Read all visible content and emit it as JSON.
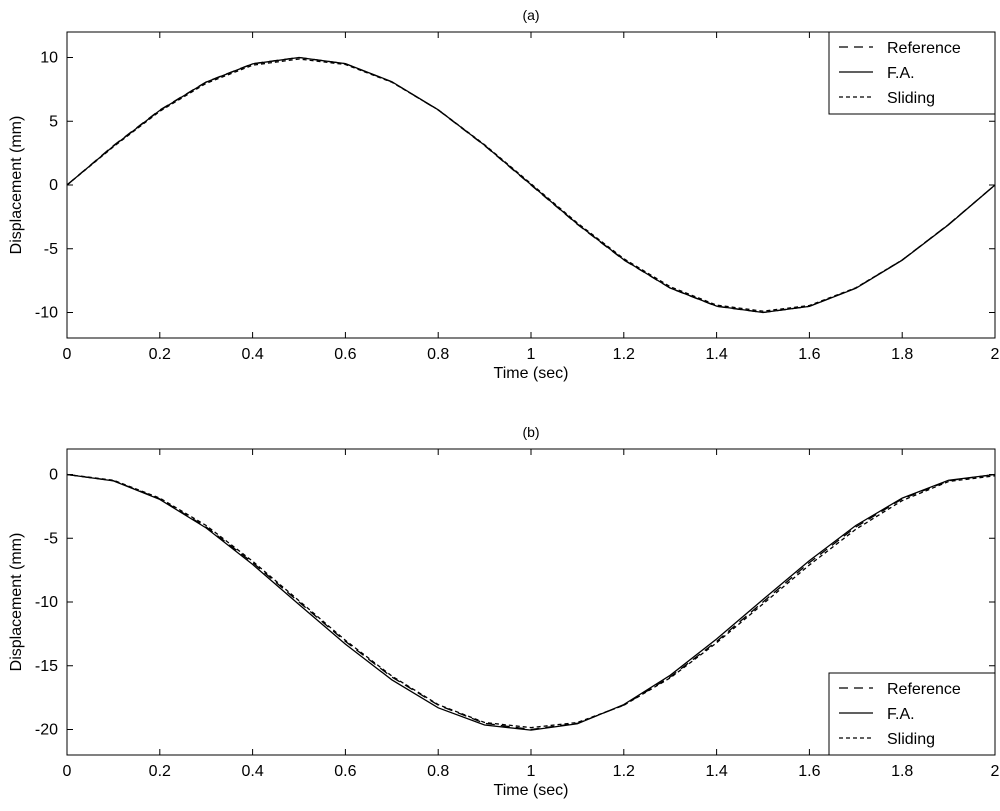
{
  "chart_data": [
    {
      "type": "line",
      "title": "(a)",
      "xlabel": "Time (sec)",
      "ylabel": "Displacement (mm)",
      "xlim": [
        0,
        2
      ],
      "ylim": [
        -12,
        12
      ],
      "xticks": [
        0,
        0.2,
        0.4,
        0.6,
        0.8,
        1,
        1.2,
        1.4,
        1.6,
        1.8,
        2
      ],
      "yticks": [
        -10,
        -5,
        0,
        5,
        10
      ],
      "grid": false,
      "legend_position": "top-right",
      "x": [
        0,
        0.1,
        0.2,
        0.3,
        0.4,
        0.5,
        0.6,
        0.7,
        0.8,
        0.9,
        1.0,
        1.1,
        1.2,
        1.3,
        1.4,
        1.5,
        1.6,
        1.7,
        1.8,
        1.9,
        2.0
      ],
      "series": [
        {
          "name": "Reference",
          "style": "dashed",
          "values": [
            0,
            3.09,
            5.88,
            8.09,
            9.51,
            10.0,
            9.51,
            8.09,
            5.88,
            3.09,
            0,
            -3.09,
            -5.88,
            -8.09,
            -9.51,
            -10.0,
            -9.51,
            -8.09,
            -5.88,
            -3.09,
            0
          ]
        },
        {
          "name": "F.A.",
          "style": "solid",
          "values": [
            0,
            3.05,
            5.85,
            8.07,
            9.5,
            10.0,
            9.52,
            8.1,
            5.9,
            3.12,
            0.03,
            -3.06,
            -5.86,
            -8.08,
            -9.5,
            -10.0,
            -9.52,
            -8.1,
            -5.9,
            -3.11,
            0
          ]
        },
        {
          "name": "Sliding",
          "style": "dotted",
          "values": [
            0,
            3.0,
            5.78,
            7.98,
            9.4,
            9.88,
            9.45,
            8.06,
            5.9,
            3.16,
            0.1,
            -2.98,
            -5.78,
            -7.98,
            -9.42,
            -9.9,
            -9.45,
            -8.06,
            -5.88,
            -3.1,
            0
          ]
        }
      ]
    },
    {
      "type": "line",
      "title": "(b)",
      "xlabel": "Time (sec)",
      "ylabel": "Displacement (mm)",
      "xlim": [
        0,
        2
      ],
      "ylim": [
        -22,
        2
      ],
      "xticks": [
        0,
        0.2,
        0.4,
        0.6,
        0.8,
        1,
        1.2,
        1.4,
        1.6,
        1.8,
        2
      ],
      "yticks": [
        -20,
        -15,
        -10,
        -5,
        0
      ],
      "grid": false,
      "legend_position": "bottom-right",
      "x": [
        0,
        0.1,
        0.2,
        0.3,
        0.4,
        0.5,
        0.6,
        0.7,
        0.8,
        0.9,
        1.0,
        1.1,
        1.2,
        1.3,
        1.4,
        1.5,
        1.6,
        1.7,
        1.8,
        1.9,
        2.0
      ],
      "series": [
        {
          "name": "Reference",
          "style": "dashed",
          "values": [
            0,
            -0.49,
            -1.91,
            -4.12,
            -6.91,
            -10.0,
            -13.09,
            -15.88,
            -18.09,
            -19.51,
            -20.0,
            -19.51,
            -18.09,
            -15.88,
            -13.09,
            -10.0,
            -6.91,
            -4.12,
            -1.91,
            -0.49,
            0
          ]
        },
        {
          "name": "F.A.",
          "style": "solid",
          "values": [
            0,
            -0.5,
            -1.95,
            -4.2,
            -7.05,
            -10.2,
            -13.3,
            -16.1,
            -18.3,
            -19.65,
            -20.05,
            -19.55,
            -18.05,
            -15.75,
            -12.9,
            -9.8,
            -6.75,
            -4.0,
            -1.85,
            -0.45,
            0
          ]
        },
        {
          "name": "Sliding",
          "style": "dotted",
          "values": [
            0,
            -0.45,
            -1.85,
            -4.0,
            -6.8,
            -9.9,
            -13.0,
            -15.8,
            -18.05,
            -19.45,
            -19.85,
            -19.45,
            -18.1,
            -15.95,
            -13.2,
            -10.15,
            -7.1,
            -4.3,
            -2.05,
            -0.55,
            -0.1
          ]
        }
      ]
    }
  ]
}
